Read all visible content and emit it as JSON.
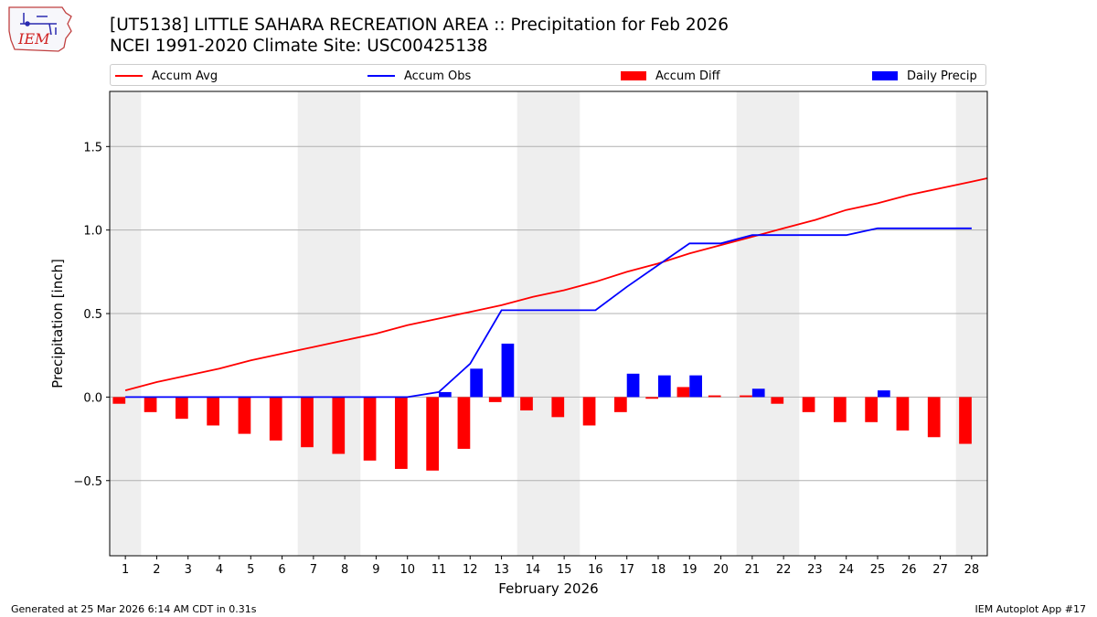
{
  "header": {
    "title_line1": "[UT5138] LITTLE SAHARA RECREATION AREA :: Precipitation for Feb 2026",
    "title_line2": "NCEI 1991-2020 Climate Site: USC00425138"
  },
  "logo": {
    "text": "IEM"
  },
  "legend": {
    "accum_avg": "Accum Avg",
    "accum_obs": "Accum Obs",
    "accum_diff": "Accum Diff",
    "daily_precip": "Daily Precip"
  },
  "footer": {
    "generated": "Generated at 25 Mar 2026 6:14 AM CDT in 0.31s",
    "app": "IEM Autoplot App #17"
  },
  "colors": {
    "avg": "#ff0000",
    "obs": "#0000ff",
    "diff": "#ff0000",
    "daily": "#0000ff",
    "weekend_shade": "#eeeeee",
    "grid": "#b0b0b0"
  },
  "chart_data": {
    "type": "bar",
    "title": "[UT5138] LITTLE SAHARA RECREATION AREA :: Precipitation for Feb 2026",
    "xlabel": "February 2026",
    "ylabel": "Precipitation [inch]",
    "ylim": [
      -0.95,
      1.83
    ],
    "xlim": [
      0.5,
      28.5
    ],
    "yticks": [
      -0.5,
      0.0,
      0.5,
      1.0,
      1.5
    ],
    "ytick_labels": [
      "−0.5",
      "0.0",
      "0.5",
      "1.0",
      "1.5"
    ],
    "days": [
      1,
      2,
      3,
      4,
      5,
      6,
      7,
      8,
      9,
      10,
      11,
      12,
      13,
      14,
      15,
      16,
      17,
      18,
      19,
      20,
      21,
      22,
      23,
      24,
      25,
      26,
      27,
      28
    ],
    "weekend_days": [
      1,
      7,
      8,
      14,
      15,
      21,
      22,
      28
    ],
    "grid": "horizontal",
    "legend_position": "top",
    "series": [
      {
        "name": "Accum Avg",
        "kind": "line",
        "values": [
          0.04,
          0.09,
          0.13,
          0.17,
          0.22,
          0.26,
          0.3,
          0.34,
          0.38,
          0.43,
          0.47,
          0.51,
          0.55,
          0.6,
          0.64,
          0.69,
          0.75,
          0.8,
          0.86,
          0.91,
          0.96,
          1.01,
          1.06,
          1.12,
          1.16,
          1.21,
          1.25,
          1.29,
          1.31
        ],
        "x": [
          1,
          2,
          3,
          4,
          5,
          6,
          7,
          8,
          9,
          10,
          11,
          12,
          13,
          14,
          15,
          16,
          17,
          18,
          19,
          20,
          21,
          22,
          23,
          24,
          25,
          26,
          27,
          28,
          28.5
        ]
      },
      {
        "name": "Accum Obs",
        "kind": "line",
        "x": [
          1,
          2,
          3,
          4,
          5,
          6,
          7,
          8,
          9,
          10,
          11,
          12,
          13,
          14,
          15,
          16,
          17,
          18,
          19,
          20,
          21,
          22,
          23,
          24,
          25,
          26,
          27,
          28
        ],
        "values": [
          0.0,
          0.0,
          0.0,
          0.0,
          0.0,
          0.0,
          0.0,
          0.0,
          0.0,
          0.0,
          0.03,
          0.2,
          0.52,
          0.52,
          0.52,
          0.52,
          0.66,
          0.79,
          0.92,
          0.92,
          0.97,
          0.97,
          0.97,
          0.97,
          1.01,
          1.01,
          1.01,
          1.01
        ]
      },
      {
        "name": "Accum Diff",
        "kind": "bar",
        "x": [
          1,
          2,
          3,
          4,
          5,
          6,
          7,
          8,
          9,
          10,
          11,
          12,
          13,
          14,
          15,
          16,
          17,
          18,
          19,
          20,
          21,
          22,
          23,
          24,
          25,
          26,
          27,
          28
        ],
        "values": [
          -0.04,
          -0.09,
          -0.13,
          -0.17,
          -0.22,
          -0.26,
          -0.3,
          -0.34,
          -0.38,
          -0.43,
          -0.44,
          -0.31,
          -0.03,
          -0.08,
          -0.12,
          -0.17,
          -0.09,
          -0.01,
          0.06,
          0.01,
          0.01,
          -0.04,
          -0.09,
          -0.15,
          -0.15,
          -0.2,
          -0.24,
          -0.28
        ]
      },
      {
        "name": "Daily Precip",
        "kind": "bar",
        "x": [
          1,
          2,
          3,
          4,
          5,
          6,
          7,
          8,
          9,
          10,
          11,
          12,
          13,
          14,
          15,
          16,
          17,
          18,
          19,
          20,
          21,
          22,
          23,
          24,
          25,
          26,
          27,
          28
        ],
        "values": [
          0,
          0,
          0,
          0,
          0,
          0,
          0,
          0,
          0,
          0,
          0.03,
          0.17,
          0.32,
          0,
          0,
          0,
          0.14,
          0.13,
          0.13,
          0,
          0.05,
          0,
          0,
          0,
          0.04,
          0,
          0,
          0
        ]
      }
    ]
  }
}
